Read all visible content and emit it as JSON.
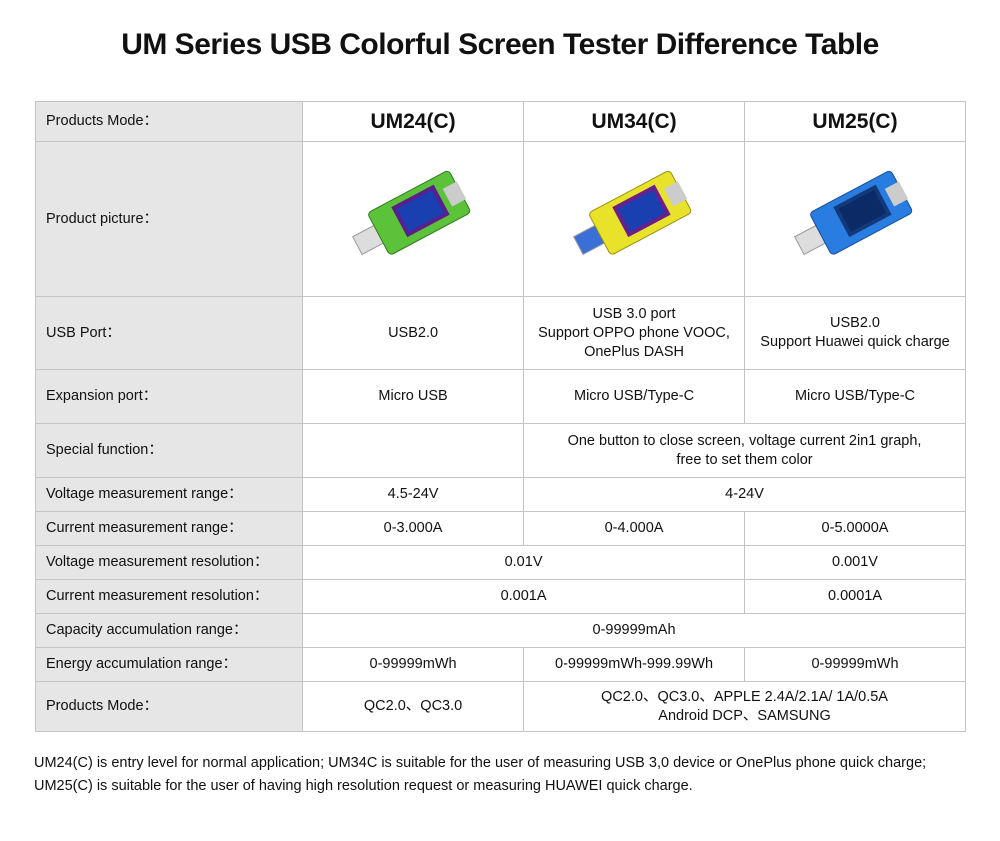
{
  "title": "UM Series USB Colorful Screen Tester Difference Table",
  "table": {
    "header": [
      "Products Mode：",
      "UM24(C)",
      "UM34(C)",
      "UM25(C)"
    ],
    "rows": [
      {
        "label": "Product picture："
      },
      {
        "label": "USB Port：",
        "cells": [
          "USB2.0",
          [
            "USB 3.0 port",
            "Support OPPO phone VOOC,",
            "OnePlus DASH"
          ],
          [
            "USB2.0",
            "Support Huawei quick charge"
          ]
        ]
      },
      {
        "label": "Expansion port：",
        "cells": [
          "Micro USB",
          "Micro USB/Type-C",
          "Micro USB/Type-C"
        ]
      },
      {
        "label": "Special function：",
        "cells": [
          [
            "One button to close screen, voltage current 2in1 graph,",
            "free to set them color"
          ]
        ]
      },
      {
        "label": "Voltage measurement range：",
        "cells": [
          "4.5-24V",
          "4-24V"
        ]
      },
      {
        "label": "Current measurement range：",
        "cells": [
          "0-3.000A",
          "0-4.000A",
          "0-5.0000A"
        ]
      },
      {
        "label": "Voltage measurement resolution：",
        "cells": [
          "0.01V",
          "0.001V"
        ]
      },
      {
        "label": "Current measurement resolution：",
        "cells": [
          "0.001A",
          "0.0001A"
        ]
      },
      {
        "label": "Capacity accumulation range：",
        "cells": [
          "0-99999mAh"
        ]
      },
      {
        "label": "Energy accumulation range：",
        "cells": [
          "0-99999mWh",
          "0-99999mWh-999.99Wh",
          "0-99999mWh"
        ]
      },
      {
        "label": "Products Mode：",
        "cells": [
          "QC2.0、QC3.0",
          [
            "QC2.0、QC3.0、APPLE 2.4A/2.1A/ 1A/0.5A",
            "Android DCP、SAMSUNG"
          ]
        ]
      }
    ]
  },
  "footer": [
    "UM24(C) is  entry level for normal application; UM34C is suitable for the user of measuring USB 3,0 device or OnePlus phone quick charge;",
    "UM25(C) is suitable for the user of having high resolution request or measuring HUAWEI quick charge."
  ]
}
